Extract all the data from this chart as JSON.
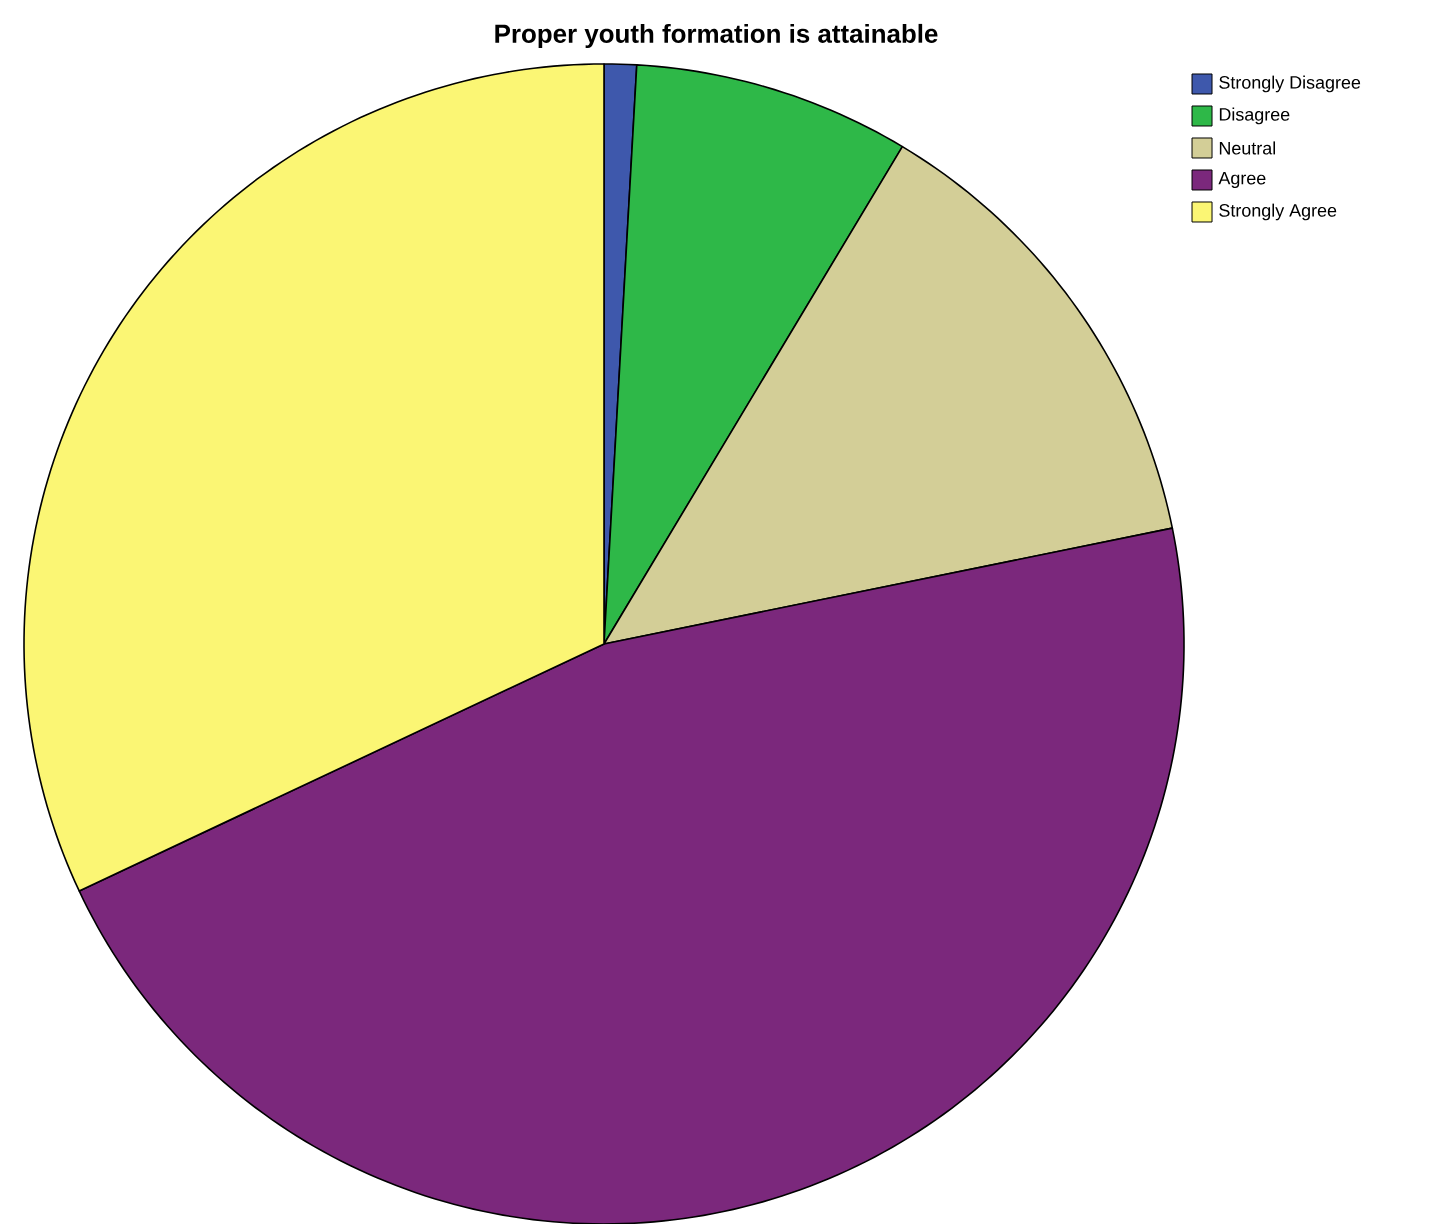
{
  "chart_data": {
    "type": "pie",
    "title": "Proper youth formation is attainable",
    "categories": [
      "Strongly Disagree",
      "Disagree",
      "Neutral",
      "Agree",
      "Strongly Agree"
    ],
    "values": [
      0.9,
      7.7,
      13.2,
      46.2,
      32.0
    ],
    "colors": [
      "#3e58ac",
      "#2eb848",
      "#d3ce97",
      "#7b287c",
      "#fbf674"
    ],
    "legend": "top right"
  }
}
